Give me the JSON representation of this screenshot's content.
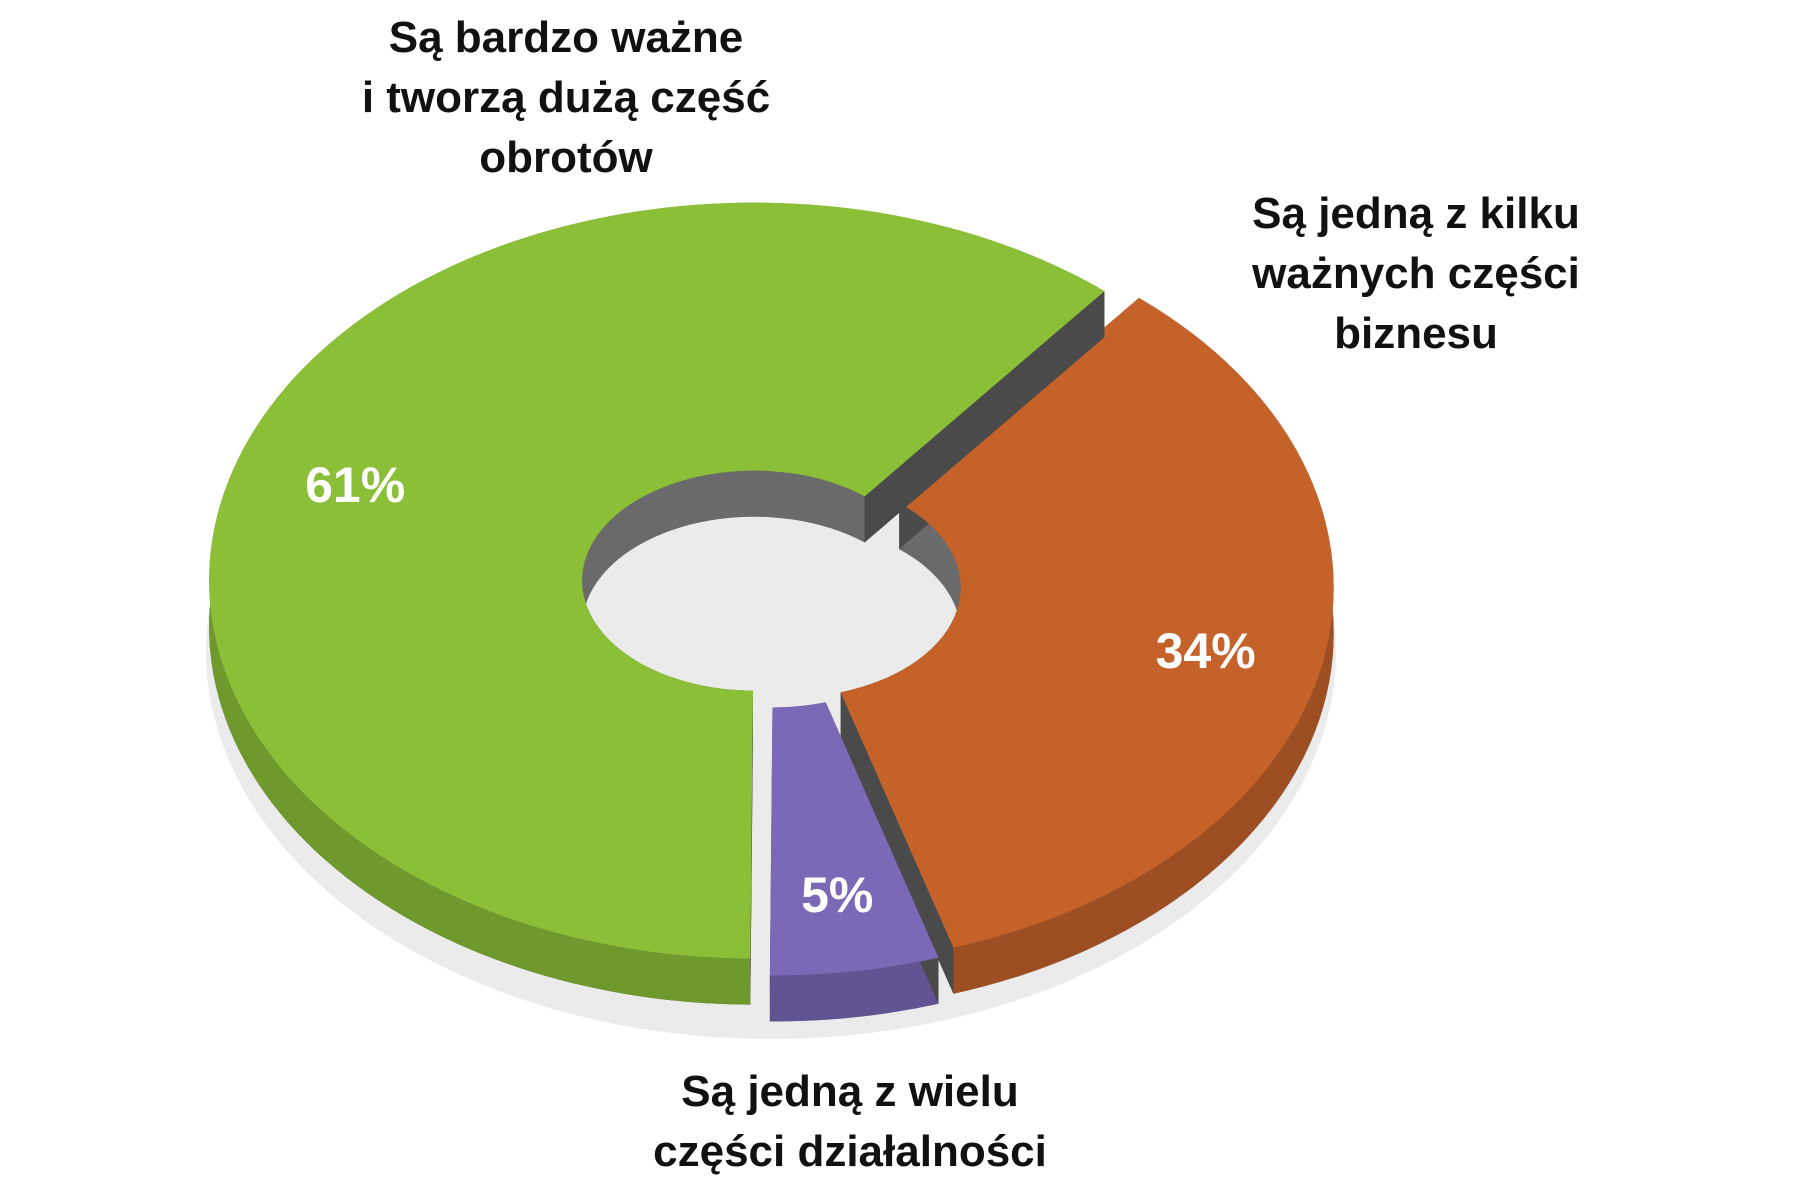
{
  "chart_data": {
    "type": "donut3d",
    "categories": [
      "Są bardzo ważne\ni tworzą dużą część\nobrotów",
      "Są jedną z kilku\nważnych części\nbiznesu",
      "Są jedną z wielu\nczęści działalności"
    ],
    "values": [
      61,
      34,
      5
    ],
    "value_labels": [
      "61%",
      "34%",
      "5%"
    ],
    "colors": [
      "#8cbf38",
      "#c4622a",
      "#7b68b6"
    ]
  }
}
